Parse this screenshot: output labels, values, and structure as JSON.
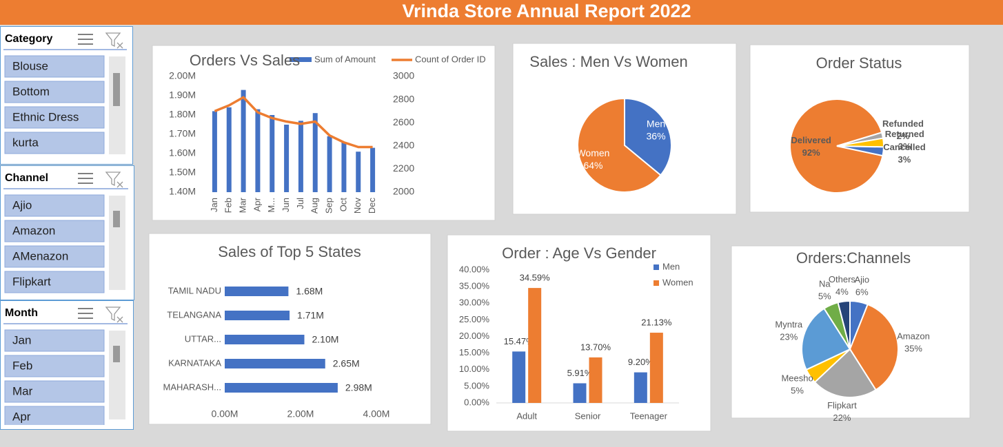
{
  "title": "Vrinda Store Annual Report 2022",
  "slicers": [
    {
      "title": "Category",
      "items": [
        "Blouse",
        "Bottom",
        "Ethnic Dress",
        "kurta"
      ]
    },
    {
      "title": "Channel",
      "items": [
        "Ajio",
        "Amazon",
        "AMenazon",
        "Flipkart"
      ]
    },
    {
      "title": "Month",
      "items": [
        "Jan",
        "Feb",
        "Mar",
        "Apr"
      ]
    }
  ],
  "chart_data": [
    {
      "type": "combo",
      "title": "Orders Vs Sales",
      "categories": [
        "Jan",
        "Feb",
        "Mar",
        "Apr",
        "M...",
        "Jun",
        "Jul",
        "Aug",
        "Sep",
        "Oct",
        "Nov",
        "Dec"
      ],
      "series": [
        {
          "name": "Sum of Amount",
          "type": "bar",
          "color": "#4472c4",
          "values": [
            1.82,
            1.84,
            1.93,
            1.83,
            1.8,
            1.75,
            1.77,
            1.81,
            1.69,
            1.66,
            1.61,
            1.63
          ]
        },
        {
          "name": "Count of Order ID",
          "type": "line",
          "axis": "y2",
          "color": "#ed7d31",
          "values": [
            2700,
            2750,
            2820,
            2690,
            2640,
            2610,
            2590,
            2610,
            2490,
            2430,
            2390,
            2390
          ]
        }
      ],
      "ylim": [
        1.4,
        2.0
      ],
      "yticks": [
        {
          "value": 1.4,
          "label": "1.40M"
        },
        {
          "value": 1.5,
          "label": "1.50M"
        },
        {
          "value": 1.6,
          "label": "1.60M"
        },
        {
          "value": 1.7,
          "label": "1.70M"
        },
        {
          "value": 1.8,
          "label": "1.80M"
        },
        {
          "value": 1.9,
          "label": "1.90M"
        },
        {
          "value": 2.0,
          "label": "2.00M"
        }
      ],
      "y2lim": [
        2000,
        3000
      ],
      "y2ticks": [
        2000,
        2200,
        2400,
        2600,
        2800,
        3000
      ]
    },
    {
      "type": "pie",
      "title": "Sales : Men Vs Women",
      "categories": [
        "Men",
        "Women"
      ],
      "values": [
        36,
        64
      ],
      "value_labels": [
        "36%",
        "64%"
      ],
      "colors": [
        "#4472c4",
        "#ed7d31"
      ]
    },
    {
      "type": "pie",
      "title": "Order Status",
      "categories": [
        "Delivered",
        "Refunded",
        "Returned",
        "Cancelled"
      ],
      "values": [
        92,
        2,
        3,
        3
      ],
      "value_labels": [
        "92%",
        "2%",
        "3%",
        "3%"
      ],
      "colors": [
        "#ed7d31",
        "#a5a5a5",
        "#ffc000",
        "#4472c4"
      ]
    },
    {
      "type": "barh",
      "title": "Sales of Top 5 States",
      "categories": [
        "TAMIL NADU",
        "TELANGANA",
        "UTTAR...",
        "KARNATAKA",
        "MAHARASH..."
      ],
      "values": [
        1.68,
        1.71,
        2.1,
        2.65,
        2.98
      ],
      "value_labels": [
        "1.68M",
        "1.71M",
        "2.10M",
        "2.65M",
        "2.98M"
      ],
      "color": "#4472c4",
      "xlim": [
        0,
        4
      ],
      "xticks": [
        {
          "value": 0,
          "label": "0.00M"
        },
        {
          "value": 2,
          "label": "2.00M"
        },
        {
          "value": 4,
          "label": "4.00M"
        }
      ]
    },
    {
      "type": "bar",
      "title": "Order : Age Vs Gender",
      "categories": [
        "Adult",
        "Senior",
        "Teenager"
      ],
      "series": [
        {
          "name": "Men",
          "color": "#4472c4",
          "values": [
            15.47,
            5.91,
            9.2
          ],
          "value_labels": [
            "15.47%",
            "5.91%",
            "9.20%"
          ]
        },
        {
          "name": "Women",
          "color": "#ed7d31",
          "values": [
            34.59,
            13.7,
            21.13
          ],
          "value_labels": [
            "34.59%",
            "13.70%",
            "21.13%"
          ]
        }
      ],
      "ylim": [
        0,
        40
      ],
      "yticks": [
        {
          "value": 0,
          "label": "0.00%"
        },
        {
          "value": 5,
          "label": "5.00%"
        },
        {
          "value": 10,
          "label": "10.00%"
        },
        {
          "value": 15,
          "label": "15.00%"
        },
        {
          "value": 20,
          "label": "20.00%"
        },
        {
          "value": 25,
          "label": "25.00%"
        },
        {
          "value": 30,
          "label": "30.00%"
        },
        {
          "value": 35,
          "label": "35.00%"
        },
        {
          "value": 40,
          "label": "40.00%"
        }
      ]
    },
    {
      "type": "pie",
      "title": "Orders:Channels",
      "categories": [
        "Ajio",
        "Amazon",
        "Flipkart",
        "Meesho",
        "Myntra",
        "Na",
        "Others"
      ],
      "values": [
        6,
        35,
        22,
        5,
        23,
        5,
        4
      ],
      "value_labels": [
        "6%",
        "35%",
        "22%",
        "5%",
        "23%",
        "5%",
        "4%"
      ],
      "colors": [
        "#4472c4",
        "#ed7d31",
        "#a5a5a5",
        "#ffc000",
        "#5b9bd5",
        "#70ad47",
        "#264478"
      ]
    }
  ]
}
